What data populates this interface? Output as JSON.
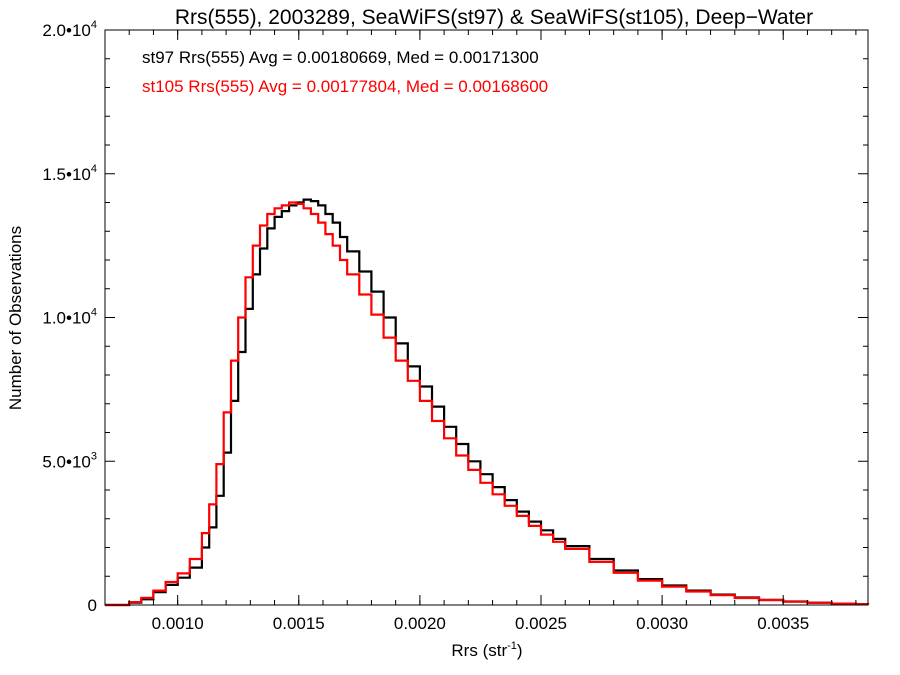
{
  "chart_data": {
    "type": "line",
    "title": "Rrs(555), 2003289, SeaWiFS(st97) & SeaWiFS(st105), Deep−Water",
    "xlabel": "Rrs (str",
    "xlabel_sup": "-1",
    "xlabel_end": ")",
    "ylabel": "Number of Observations",
    "xlim": [
      0.0007,
      0.00385
    ],
    "ylim": [
      0,
      20000
    ],
    "x_ticks": [
      {
        "value": 0.001,
        "label": "0.0010"
      },
      {
        "value": 0.0015,
        "label": "0.0015"
      },
      {
        "value": 0.002,
        "label": "0.0020"
      },
      {
        "value": 0.0025,
        "label": "0.0025"
      },
      {
        "value": 0.003,
        "label": "0.0030"
      },
      {
        "value": 0.0035,
        "label": "0.0035"
      }
    ],
    "y_ticks": [
      {
        "value": 0,
        "label": "0",
        "exp": ""
      },
      {
        "value": 5000,
        "label": "5.0•10",
        "exp": "3"
      },
      {
        "value": 10000,
        "label": "1.0•10",
        "exp": "4"
      },
      {
        "value": 15000,
        "label": "1.5•10",
        "exp": "4"
      },
      {
        "value": 20000,
        "label": "2.0•10",
        "exp": "4"
      }
    ],
    "grid": false,
    "legend_position": "top-left",
    "series": [
      {
        "name": "st97",
        "legend": "st97 Rrs(555) Avg = 0.00180669, Med = 0.00171300",
        "color": "#000000",
        "x": [
          0.0007,
          0.00076,
          0.0008,
          0.00085,
          0.0009,
          0.00095,
          0.001,
          0.00105,
          0.0011,
          0.00113,
          0.00116,
          0.00119,
          0.00122,
          0.00125,
          0.00128,
          0.00131,
          0.00134,
          0.00137,
          0.0014,
          0.00143,
          0.00146,
          0.00149,
          0.00152,
          0.00155,
          0.00158,
          0.00161,
          0.00164,
          0.00167,
          0.0017,
          0.00175,
          0.0018,
          0.00185,
          0.0019,
          0.00195,
          0.002,
          0.00205,
          0.0021,
          0.00215,
          0.0022,
          0.00225,
          0.0023,
          0.00235,
          0.0024,
          0.00245,
          0.0025,
          0.00255,
          0.0026,
          0.0027,
          0.0028,
          0.0029,
          0.003,
          0.0031,
          0.0032,
          0.0033,
          0.0034,
          0.0035,
          0.0036,
          0.0037,
          0.0038,
          0.00385
        ],
        "y": [
          0,
          0,
          80,
          200,
          450,
          700,
          950,
          1300,
          2000,
          2700,
          3800,
          5300,
          7100,
          8800,
          10300,
          11500,
          12400,
          13100,
          13500,
          13700,
          13900,
          14000,
          14100,
          14050,
          13900,
          13600,
          13300,
          12800,
          12300,
          11600,
          10900,
          10000,
          9100,
          8300,
          7600,
          6900,
          6200,
          5600,
          5000,
          4550,
          4100,
          3650,
          3250,
          2900,
          2600,
          2300,
          2050,
          1600,
          1200,
          900,
          680,
          500,
          360,
          260,
          180,
          120,
          80,
          50,
          30,
          20
        ]
      },
      {
        "name": "st105",
        "legend": "st105 Rrs(555) Avg = 0.00177804, Med = 0.00168600",
        "color": "#ff0000",
        "x": [
          0.0007,
          0.00076,
          0.0008,
          0.00085,
          0.0009,
          0.00095,
          0.001,
          0.00105,
          0.0011,
          0.00113,
          0.00116,
          0.00119,
          0.00122,
          0.00125,
          0.00128,
          0.00131,
          0.00134,
          0.00137,
          0.0014,
          0.00143,
          0.00146,
          0.00149,
          0.00152,
          0.00155,
          0.00158,
          0.00161,
          0.00164,
          0.00167,
          0.0017,
          0.00175,
          0.0018,
          0.00185,
          0.0019,
          0.00195,
          0.002,
          0.00205,
          0.0021,
          0.00215,
          0.0022,
          0.00225,
          0.0023,
          0.00235,
          0.0024,
          0.00245,
          0.0025,
          0.00255,
          0.0026,
          0.0027,
          0.0028,
          0.0029,
          0.003,
          0.0031,
          0.0032,
          0.0033,
          0.0034,
          0.0035,
          0.0036,
          0.0037,
          0.0038,
          0.00385
        ],
        "y": [
          0,
          0,
          100,
          250,
          500,
          800,
          1100,
          1600,
          2500,
          3500,
          4900,
          6700,
          8500,
          10000,
          11400,
          12500,
          13200,
          13600,
          13800,
          13900,
          14000,
          13950,
          13800,
          13600,
          13300,
          12900,
          12500,
          12000,
          11500,
          10800,
          10100,
          9300,
          8500,
          7800,
          7100,
          6400,
          5800,
          5200,
          4700,
          4250,
          3850,
          3450,
          3100,
          2750,
          2450,
          2200,
          1950,
          1500,
          1120,
          850,
          640,
          470,
          340,
          245,
          170,
          115,
          75,
          48,
          28,
          18
        ]
      }
    ]
  }
}
